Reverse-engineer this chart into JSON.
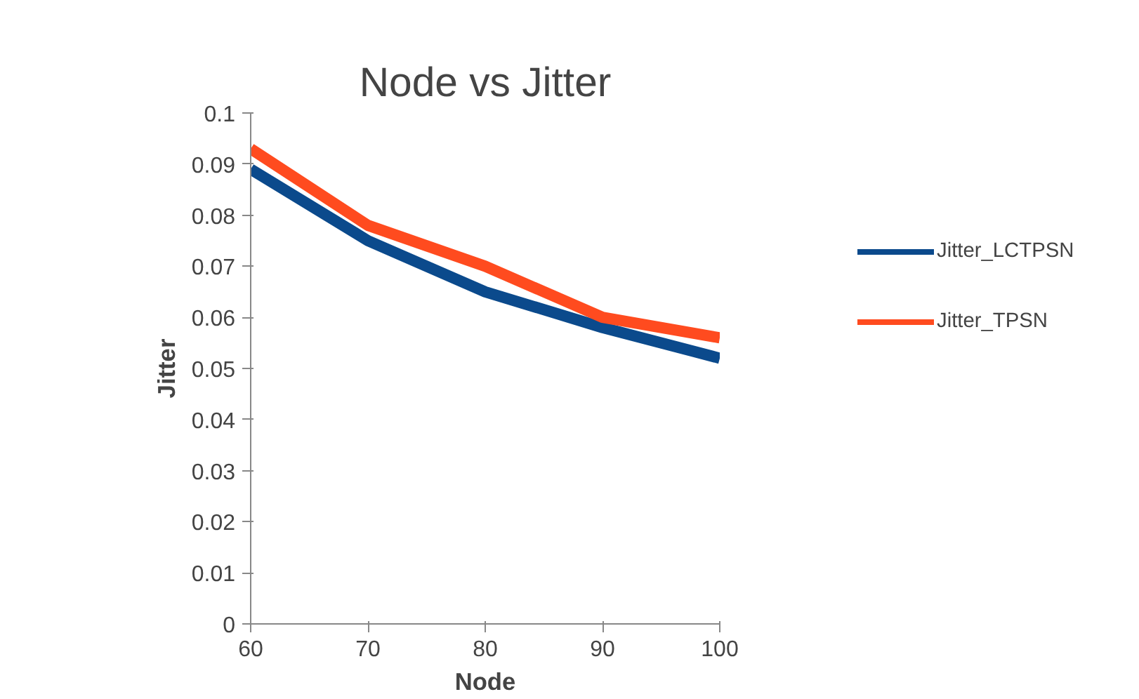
{
  "chart_data": {
    "type": "line",
    "title": "Node vs Jitter",
    "xlabel": "Node",
    "ylabel": "Jitter",
    "x": [
      60,
      70,
      80,
      90,
      100
    ],
    "series": [
      {
        "name": "Jitter_LCTPSN",
        "color": "#0b4a8c",
        "values": [
          0.089,
          0.075,
          0.065,
          0.058,
          0.052
        ]
      },
      {
        "name": "Jitter_TPSN",
        "color": "#ff4b1f",
        "values": [
          0.093,
          0.078,
          0.07,
          0.06,
          0.056
        ]
      }
    ],
    "xlim": [
      60,
      100
    ],
    "xticks": [
      60,
      70,
      80,
      90,
      100
    ],
    "ylim": [
      0,
      0.1
    ],
    "yticks": [
      0,
      0.01,
      0.02,
      0.03,
      0.04,
      0.05,
      0.06,
      0.07,
      0.08,
      0.09,
      0.1
    ],
    "grid": false,
    "legend": "right",
    "marker": "none",
    "line_style": "solid"
  }
}
